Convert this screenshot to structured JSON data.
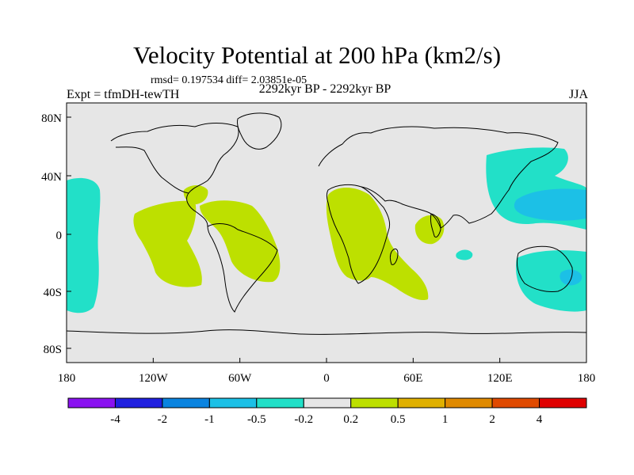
{
  "title": "Velocity Potential at 200 hPa (km2/s)",
  "stats": "rmsd= 0.197534 diff= 2.03851e-05",
  "experiment": "Expt = tfmDH-tewTH",
  "period": "2292kyr BP - 2292kyr BP",
  "season": "JJA",
  "colors": {
    "background": "#e6e6e6",
    "coast": "#000000",
    "positive_02_05": "#bde000",
    "negative_02_05": "#22e0c8",
    "negative_05_1": "#1cc0e6"
  },
  "lat_ticks": [
    "80N",
    "40N",
    "0",
    "40S",
    "80S"
  ],
  "lon_ticks": [
    "180",
    "120W",
    "60W",
    "0",
    "60E",
    "120E",
    "180"
  ],
  "colorbar": {
    "labels": [
      "-4",
      "-2",
      "-1",
      "-0.5",
      "-0.2",
      "0.2",
      "0.5",
      "1",
      "2",
      "4"
    ],
    "colors": [
      "#8a12f0",
      "#2020e0",
      "#0a84e0",
      "#1cc0e6",
      "#22e0c8",
      "#e6e6e6",
      "#bde000",
      "#e0b000",
      "#e08a00",
      "#e04a00",
      "#e00000"
    ]
  }
}
